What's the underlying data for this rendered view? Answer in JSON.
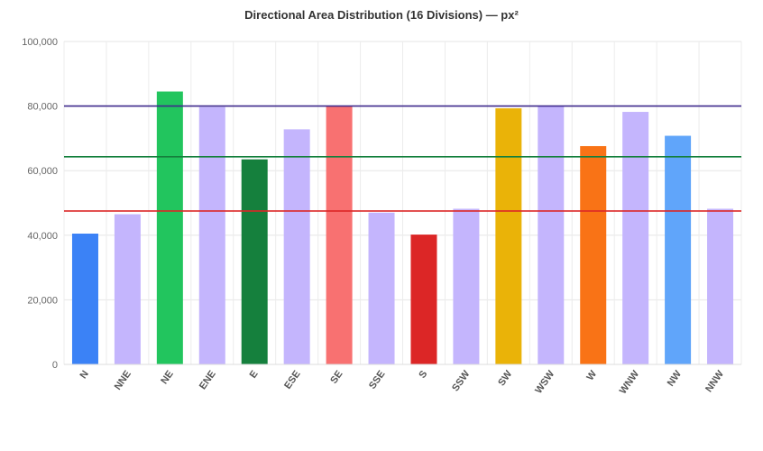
{
  "chart_data": {
    "type": "bar",
    "title": "Directional Area Distribution (16 Divisions) — px²",
    "xlabel": "",
    "ylabel": "",
    "ylim": [
      0,
      100000
    ],
    "yticks": [
      "0",
      "20,000",
      "40,000",
      "60,000",
      "80,000",
      "100,000"
    ],
    "ytick_values": [
      0,
      20000,
      40000,
      60000,
      80000,
      100000
    ],
    "grid": true,
    "categories": [
      "N",
      "NNE",
      "NE",
      "ENE",
      "E",
      "ESE",
      "SE",
      "SSE",
      "S",
      "SSW",
      "SW",
      "WSW",
      "W",
      "WNW",
      "NW",
      "NNW"
    ],
    "values": [
      40500,
      46500,
      84500,
      79700,
      63500,
      72800,
      80000,
      47000,
      40200,
      48200,
      79300,
      80000,
      67600,
      78200,
      70800,
      48200
    ],
    "bar_colors": [
      "#3b82f6",
      "#c4b5fd",
      "#22c55e",
      "#c4b5fd",
      "#15803d",
      "#c4b5fd",
      "#f87171",
      "#c4b5fd",
      "#dc2626",
      "#c4b5fd",
      "#eab308",
      "#c4b5fd",
      "#f97316",
      "#c4b5fd",
      "#60a5fa",
      "#c4b5fd"
    ],
    "reference_lines": [
      {
        "value": 80000,
        "color": "#3f2a8c"
      },
      {
        "value": 64300,
        "color": "#15803d"
      },
      {
        "value": 47500,
        "color": "#dc2626"
      }
    ]
  }
}
